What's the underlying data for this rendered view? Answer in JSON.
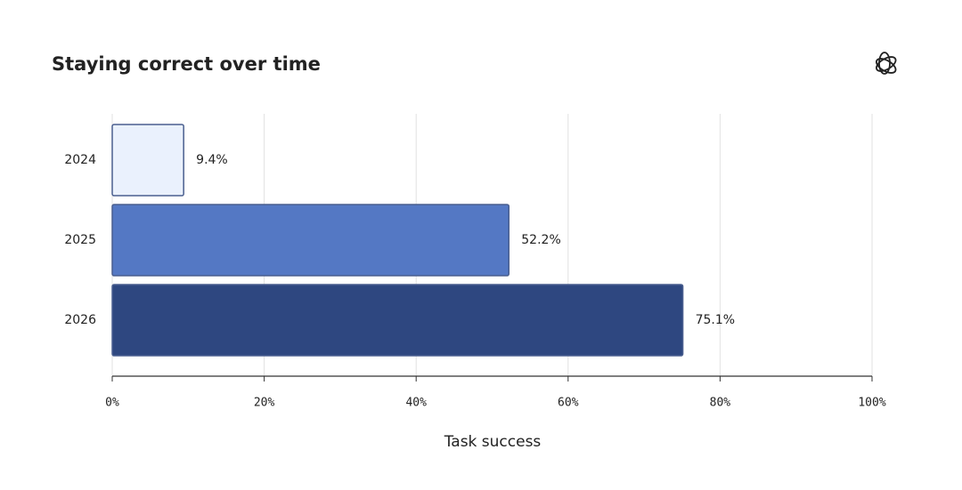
{
  "chart_data": {
    "type": "barh",
    "title": "Staying correct over time",
    "categories": [
      "2024",
      "2025",
      "2026"
    ],
    "values": [
      9.4,
      52.2,
      75.1
    ],
    "value_labels": [
      "9.4%",
      "52.2%",
      "75.1%"
    ],
    "colors": [
      "#eaf1fd",
      "#5478c4",
      "#2e4780"
    ],
    "xlim": [
      0,
      100
    ],
    "xticks": [
      {
        "value": 0,
        "label": "0%"
      },
      {
        "value": 20,
        "label": "20%"
      },
      {
        "value": 40,
        "label": "40%"
      },
      {
        "value": 60,
        "label": "60%"
      },
      {
        "value": 80,
        "label": "80%"
      },
      {
        "value": 100,
        "label": "100%"
      }
    ],
    "xlabel": "Task success",
    "grid": true
  }
}
